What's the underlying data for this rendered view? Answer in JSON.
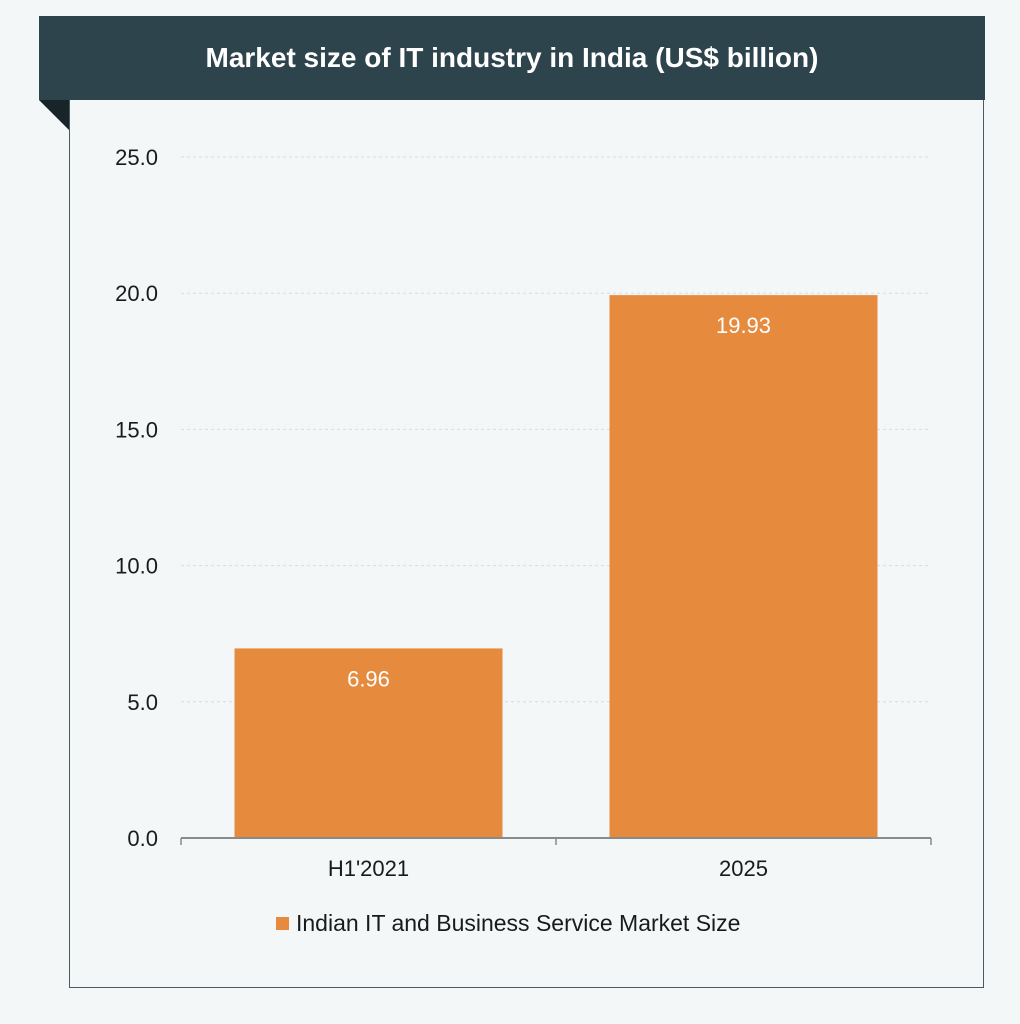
{
  "chart_data": {
    "type": "bar",
    "title": "Market size of IT industry in India (US$ billion)",
    "categories": [
      "H1'2021",
      "2025"
    ],
    "series": [
      {
        "name": "Indian IT and Business Service Market Size",
        "values": [
          6.96,
          19.93
        ]
      }
    ],
    "data_labels": [
      "6.96",
      "19.93"
    ],
    "y_ticks": [
      "0.0",
      "5.0",
      "10.0",
      "15.0",
      "20.0",
      "25.0"
    ],
    "ylim": [
      0,
      25
    ],
    "grid": true,
    "legend_position": "bottom",
    "colors": {
      "bar": "#e68b3e",
      "banner": "#2e444d",
      "grid": "#d6dcdf",
      "axis": "#8a8a8a"
    }
  }
}
